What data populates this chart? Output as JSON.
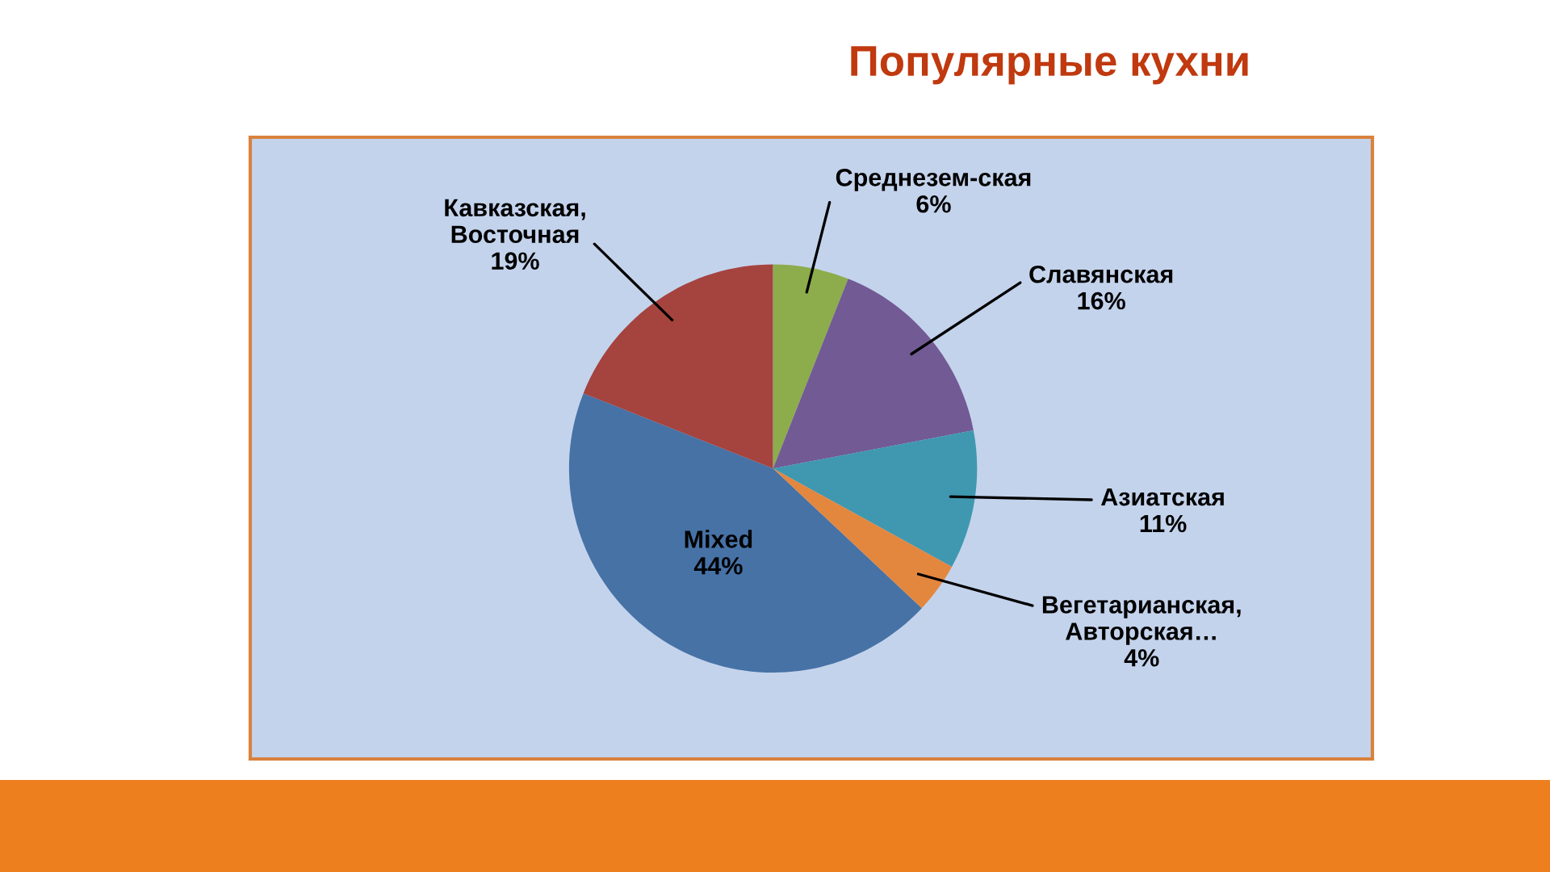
{
  "chart_data": {
    "type": "pie",
    "title": "Популярные кухни",
    "categories": [
      "Mixed",
      "Кавказская, Восточная",
      "Среднезем-ская",
      "Славянская",
      "Азиатская",
      "Вегетарианская, Авторская…"
    ],
    "values": [
      44,
      19,
      6,
      16,
      11,
      4
    ],
    "value_labels": [
      "44%",
      "19%",
      "6%",
      "16%",
      "11%",
      "4%"
    ],
    "colors": [
      "#4672a6",
      "#a5433f",
      "#8dac4c",
      "#725a94",
      "#3f98b0",
      "#e3873f"
    ]
  }
}
